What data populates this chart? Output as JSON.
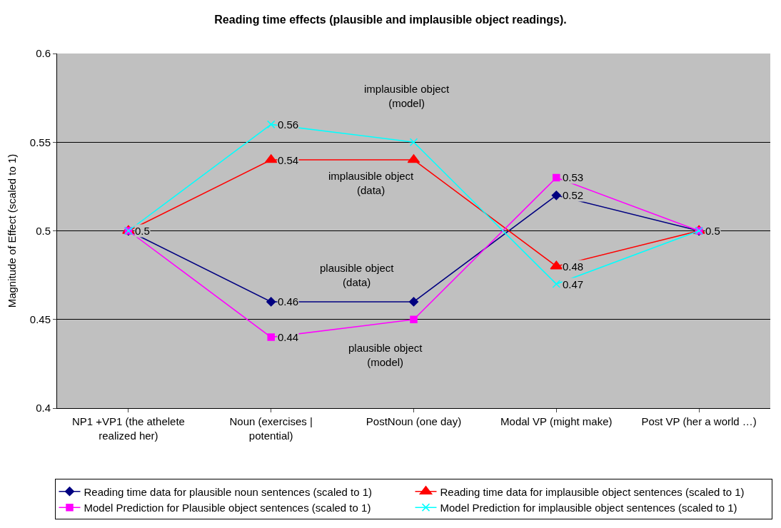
{
  "chart_data": {
    "type": "line",
    "title": "Reading time effects (plausible and implausible object readings).",
    "ylabel": "Magnitude of Effect (scaled to 1)",
    "categories": [
      "NP1 +VP1 (the athelete realized her)",
      "Noun (exercises | potential)",
      "PostNoun (one day)",
      "Modal VP (might make)",
      "Post VP (her a world …)"
    ],
    "series": [
      {
        "name": "Reading time data for plausible noun sentences (scaled to 1)",
        "color": "#000080",
        "marker": "diamond",
        "values": [
          0.5,
          0.46,
          0.46,
          0.52,
          0.5
        ],
        "value_labels": [
          "0.5",
          "0.46",
          null,
          "0.52",
          "0.5"
        ]
      },
      {
        "name": "Reading time data for implausible object sentences (scaled to 1)",
        "color": "#ff0000",
        "marker": "triangle",
        "values": [
          0.5,
          0.54,
          0.54,
          0.48,
          0.5
        ],
        "value_labels": [
          null,
          "0.54",
          null,
          "0.48",
          null
        ]
      },
      {
        "name": "Model Prediction for Plausible object sentences (scaled to 1)",
        "color": "#ff00ff",
        "marker": "square",
        "values": [
          0.5,
          0.44,
          0.45,
          0.53,
          0.5
        ],
        "value_labels": [
          null,
          "0.44",
          null,
          "0.53",
          null
        ]
      },
      {
        "name": "Model Prediction for implausible object sentences (scaled to 1)",
        "color": "#00ffff",
        "marker": "cross",
        "values": [
          0.5,
          0.56,
          0.55,
          0.47,
          0.5
        ],
        "value_labels": [
          null,
          "0.56",
          null,
          "0.47",
          null
        ]
      }
    ],
    "annotations": [
      "implausible object (model)",
      "implausible object (data)",
      "plausible object (data)",
      "plausible object (model)"
    ],
    "ylim": [
      0.4,
      0.6
    ],
    "yticks": [
      0.4,
      0.45,
      0.5,
      0.55,
      0.6
    ],
    "grid": "y",
    "legend": "bottom",
    "line_style": "solid"
  }
}
